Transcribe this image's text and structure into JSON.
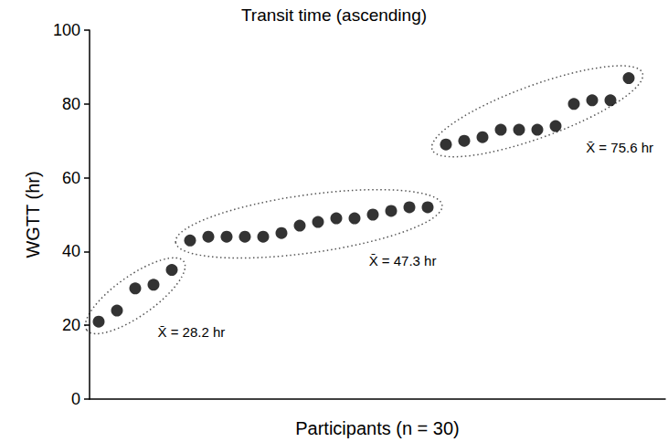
{
  "chart_data": {
    "type": "scatter",
    "title": "Transit time (ascending)",
    "x_label": "Participants (n = 30)",
    "y_label": "WGTT (hr)",
    "x": [
      1,
      2,
      3,
      4,
      5,
      6,
      7,
      8,
      9,
      10,
      11,
      12,
      13,
      14,
      15,
      16,
      17,
      18,
      19,
      20,
      21,
      22,
      23,
      24,
      25,
      26,
      27,
      28,
      29,
      30
    ],
    "values": [
      21,
      24,
      30,
      31,
      35,
      43,
      44,
      44,
      44,
      44,
      45,
      47,
      48,
      49,
      49,
      50,
      51,
      52,
      52,
      69,
      70,
      71,
      73,
      73,
      73,
      74,
      80,
      81,
      81,
      87
    ],
    "color": "#000000",
    "marker": "circle",
    "xlim": [
      0.5,
      32
    ],
    "ylim": [
      0,
      100
    ],
    "yticks": [
      0,
      20,
      40,
      60,
      80,
      100
    ],
    "tick_labels": "y",
    "grid": false,
    "annotations": [
      {
        "text": "X̄ = 28.2 hr",
        "from": 1,
        "to": 5
      },
      {
        "text": "X̄ = 47.3 hr",
        "from": 6,
        "to": 19
      },
      {
        "text": "X̄ = 75.6 hr",
        "from": 20,
        "to": 30
      }
    ]
  }
}
